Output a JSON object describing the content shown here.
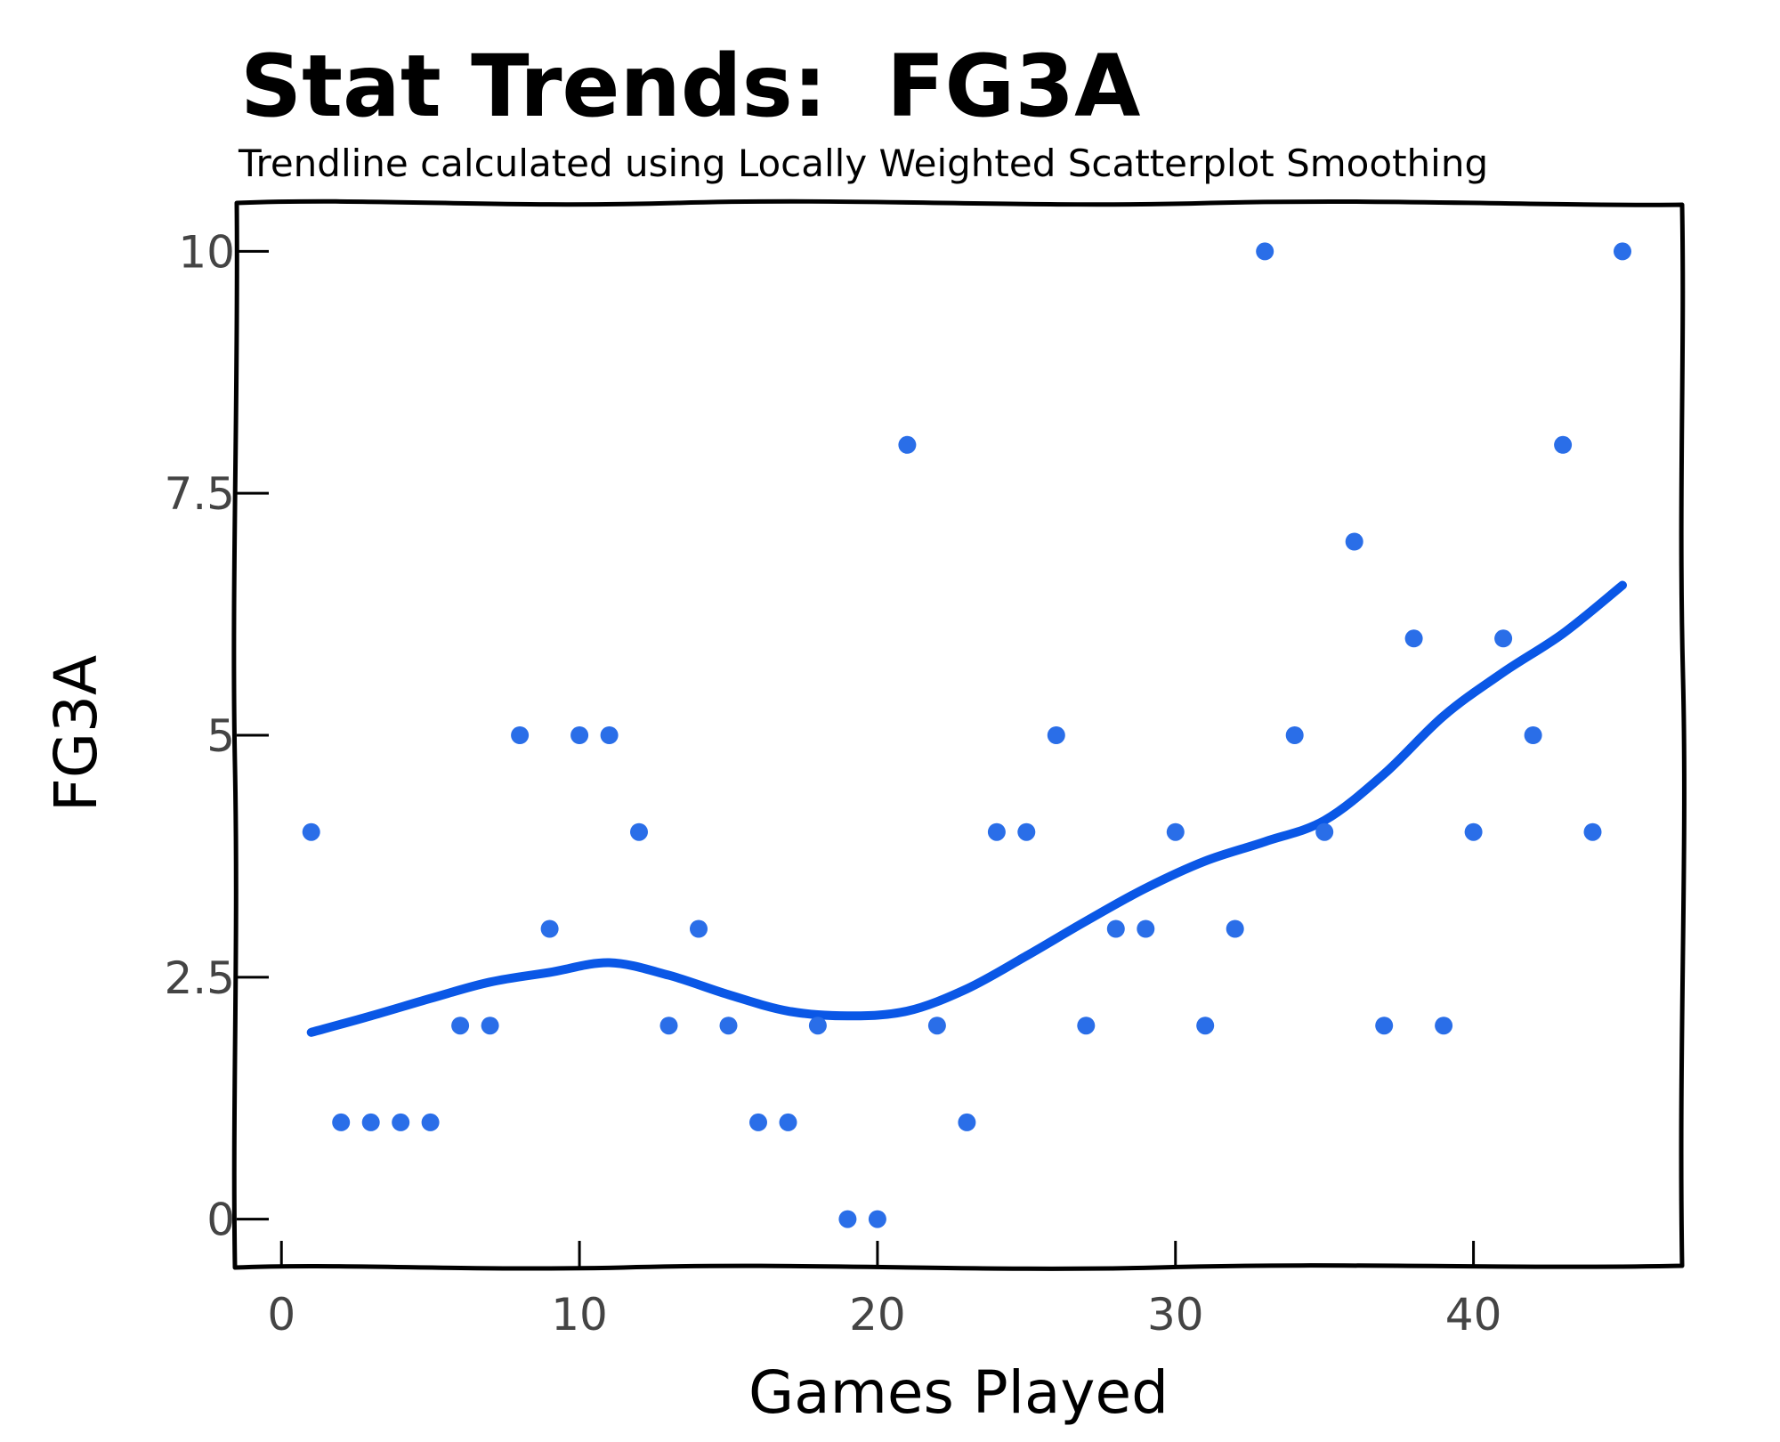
{
  "chart_data": {
    "type": "scatter",
    "title": "Stat Trends:  FG3A",
    "subtitle": "Trendline calculated using Locally Weighted Scatterplot Smoothing",
    "xlabel": "Games Played",
    "ylabel": "FG3A",
    "xlim": [
      -1.5,
      47
    ],
    "ylim": [
      -0.5,
      10.5
    ],
    "x_ticks": [
      0,
      10,
      20,
      30,
      40
    ],
    "x_tick_labels": [
      "0",
      "10",
      "20",
      "30",
      "40"
    ],
    "y_ticks": [
      0,
      2.5,
      5,
      7.5,
      10
    ],
    "y_tick_labels": [
      "0",
      "2.5",
      "5",
      "7.5",
      "10"
    ],
    "grid": false,
    "colors": {
      "points": "#2a6ee8",
      "trend": "#0a57e6"
    },
    "series": [
      {
        "type": "scatter",
        "x": [
          1,
          2,
          3,
          4,
          5,
          6,
          7,
          8,
          9,
          10,
          11,
          12,
          13,
          14,
          15,
          16,
          17,
          18,
          19,
          20,
          21,
          22,
          23,
          24,
          25,
          26,
          27,
          28,
          29,
          30,
          31,
          32,
          33,
          34,
          35,
          36,
          37,
          38,
          39,
          40,
          41,
          42,
          43,
          44,
          45
        ],
        "y": [
          4,
          1,
          1,
          1,
          1,
          2,
          2,
          5,
          3,
          5,
          5,
          4,
          2,
          3,
          2,
          1,
          1,
          2,
          0,
          0,
          8,
          2,
          1,
          4,
          4,
          5,
          2,
          3,
          3,
          4,
          2,
          3,
          10,
          5,
          4,
          7,
          2,
          6,
          2,
          4,
          6,
          5,
          8,
          4,
          10
        ]
      },
      {
        "type": "line",
        "x": [
          1,
          3,
          5,
          7,
          9,
          11,
          13,
          15,
          17,
          19,
          21,
          23,
          25,
          27,
          29,
          31,
          33,
          35,
          37,
          39,
          41,
          43,
          45
        ],
        "y": [
          1.93,
          2.1,
          2.28,
          2.45,
          2.55,
          2.65,
          2.52,
          2.32,
          2.15,
          2.1,
          2.15,
          2.38,
          2.72,
          3.08,
          3.42,
          3.7,
          3.9,
          4.12,
          4.6,
          5.2,
          5.65,
          6.05,
          6.55
        ]
      }
    ]
  }
}
